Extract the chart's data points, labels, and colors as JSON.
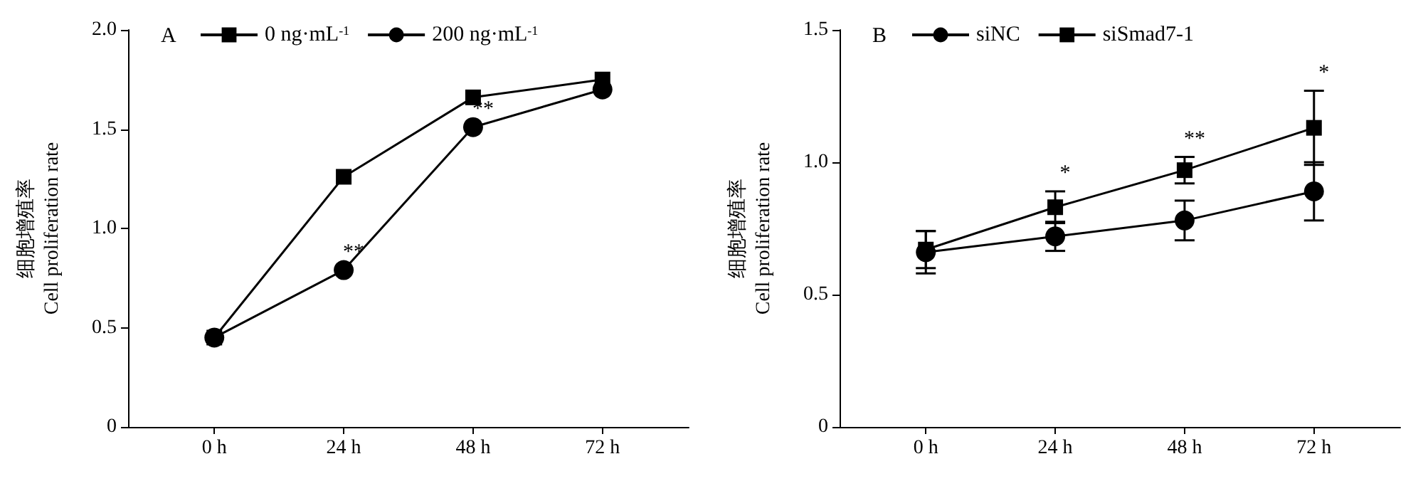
{
  "chart_data": [
    {
      "type": "line",
      "title": "A",
      "ylabel": "细胞增殖率\nCell proliferation rate",
      "x": [
        0,
        24,
        48,
        72
      ],
      "xlim": [
        -16,
        88
      ],
      "xticks": [
        {
          "value": 0,
          "label": "0 h"
        },
        {
          "value": 24,
          "label": "24 h"
        },
        {
          "value": 48,
          "label": "48 h"
        },
        {
          "value": 72,
          "label": "72 h"
        }
      ],
      "ylim": [
        0,
        2
      ],
      "yticks": [
        0,
        0.5,
        {
          "value": 1,
          "label": "1.0"
        },
        {
          "value": 1.5,
          "label": "1.5"
        },
        {
          "value": 2,
          "label": "2.0"
        }
      ],
      "grid": false,
      "legend": "top left",
      "line_style": "solid",
      "series": [
        {
          "name": "0 ng·mL$^{-1}$",
          "color": "#000000",
          "marker": "square",
          "values": [
            0.45,
            1.26,
            1.66,
            1.75
          ]
        },
        {
          "name": "200 ng·mL$^{-1}$",
          "color": "#000000",
          "marker": "circle",
          "values": [
            0.45,
            0.79,
            1.51,
            1.7
          ]
        }
      ],
      "annotations": [
        {
          "text": "**",
          "x": 24,
          "y": 0.79
        },
        {
          "text": "**",
          "x": 48,
          "y": 1.51
        }
      ]
    },
    {
      "type": "line",
      "title": "B",
      "ylabel": "细胞增殖率\nCell proliferation rate",
      "x": [
        0,
        24,
        48,
        72
      ],
      "xlim": [
        -16,
        88
      ],
      "xticks": [
        {
          "value": 0,
          "label": "0 h"
        },
        {
          "value": 24,
          "label": "24 h"
        },
        {
          "value": 48,
          "label": "48 h"
        },
        {
          "value": 72,
          "label": "72 h"
        }
      ],
      "ylim": [
        0,
        1.5
      ],
      "yticks": [
        0,
        0.5,
        {
          "value": 1,
          "label": "1.0"
        },
        1.5
      ],
      "grid": false,
      "legend": "top left",
      "line_style": "solid",
      "series": [
        {
          "name": "siNC",
          "color": "#000000",
          "marker": "circle",
          "values": [
            0.66,
            0.72,
            0.78,
            0.89
          ],
          "errors": [
            0.08,
            0.055,
            0.075,
            0.11
          ]
        },
        {
          "name": "siSmad7-1",
          "color": "#000000",
          "marker": "square",
          "values": [
            0.67,
            0.83,
            0.97,
            1.13
          ],
          "errors": [
            0.07,
            0.06,
            0.05,
            0.14
          ]
        }
      ],
      "annotations": [
        {
          "text": "*",
          "x": 24,
          "y": 0.89
        },
        {
          "text": "**",
          "x": 48,
          "y": 1.02
        },
        {
          "text": "*",
          "x": 72,
          "y": 1.27
        }
      ]
    }
  ]
}
